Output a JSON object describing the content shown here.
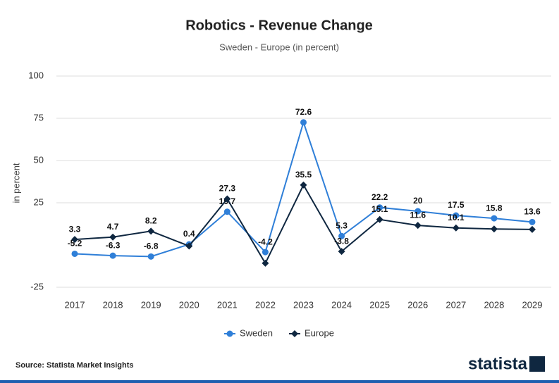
{
  "chart_data": {
    "type": "line",
    "title": "Robotics - Revenue Change",
    "subtitle": "Sweden - Europe (in percent)",
    "y_label": "in percent",
    "source": "Source: Statista Market Insights",
    "brand": "statista",
    "categories": [
      "2017",
      "2018",
      "2019",
      "2020",
      "2021",
      "2022",
      "2023",
      "2024",
      "2025",
      "2026",
      "2027",
      "2028",
      "2029"
    ],
    "series": [
      {
        "name": "Sweden",
        "color": "#2f7fd8",
        "marker": "circle",
        "values": [
          -5.2,
          -6.3,
          -6.8,
          0.4,
          19.7,
          -4.2,
          72.6,
          5.3,
          22.2,
          20,
          17.5,
          15.8,
          13.6
        ],
        "value_labels": [
          "-5.2",
          "-6.3",
          "-6.8",
          "0.4",
          "19.7",
          "-4.2",
          "72.6",
          "5.3",
          "22.2",
          "20",
          "17.5",
          "15.8",
          "13.6"
        ]
      },
      {
        "name": "Europe",
        "color": "#0f2740",
        "marker": "diamond",
        "values": [
          3.3,
          4.7,
          8.2,
          -0.6,
          27.3,
          -10.8,
          35.5,
          -3.8,
          15.1,
          11.6,
          10.1,
          9.5,
          9.2
        ],
        "value_labels": [
          "3.3",
          "4.7",
          "8.2",
          null,
          "27.3",
          null,
          "35.5",
          "-3.8",
          "15.1",
          "11.6",
          "10.1",
          null,
          null
        ]
      }
    ],
    "ylim": [
      -25,
      100
    ],
    "yticks": [
      -25,
      25,
      50,
      75,
      100
    ],
    "grid": true
  }
}
